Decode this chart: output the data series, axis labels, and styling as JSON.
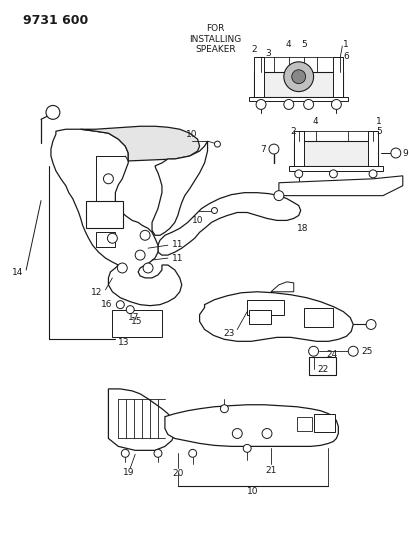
{
  "title": "9731 600",
  "bg_color": "#ffffff",
  "line_color": "#1a1a1a",
  "text_color": "#1a1a1a",
  "title_fontsize": 9,
  "label_fontsize": 6.5,
  "for_installing_speaker": "FOR\nINSTALLING\nSPEAKER"
}
